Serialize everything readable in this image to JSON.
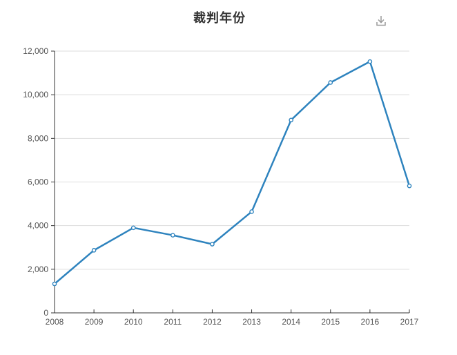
{
  "header": {
    "title": "裁判年份"
  },
  "chart_data": {
    "type": "line",
    "title": "裁判年份",
    "categories": [
      "2008",
      "2009",
      "2010",
      "2011",
      "2012",
      "2013",
      "2014",
      "2015",
      "2016",
      "2017"
    ],
    "series": [
      {
        "name": "裁判年份",
        "values": [
          1330,
          2870,
          3900,
          3560,
          3150,
          4640,
          8840,
          10560,
          11520,
          5820
        ]
      }
    ],
    "xlabel": "",
    "ylabel": "",
    "ylim": [
      0,
      12000
    ],
    "ytick_step": 2000,
    "ytick_labels": [
      "0",
      "2,000",
      "4,000",
      "6,000",
      "8,000",
      "10,000",
      "12,000"
    ],
    "grid": "horizontal-only",
    "legend": "none",
    "marker": "open-circle",
    "colors": {
      "line": "#2e83be",
      "marker_fill": "#ffffff",
      "grid": "#dddddd",
      "axis": "#333333",
      "tick_label": "#555555",
      "title": "#333333",
      "download_icon": "#999999"
    }
  }
}
